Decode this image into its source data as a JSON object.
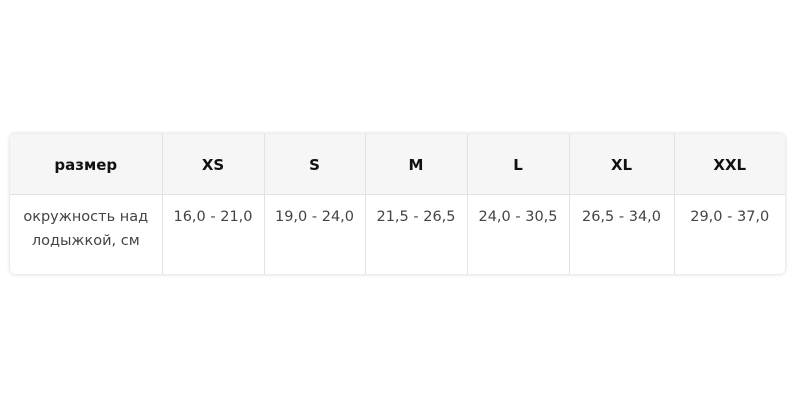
{
  "table": {
    "header": [
      "размер",
      "XS",
      "S",
      "M",
      "L",
      "XL",
      "XXL"
    ],
    "rows": [
      [
        "окружность над лодыжкой, см",
        "16,0 - 21,0",
        "19,0 - 24,0",
        "21,5 - 26,5",
        "24,0 - 30,5",
        "26,5 - 34,0",
        "29,0 - 37,0"
      ]
    ]
  }
}
